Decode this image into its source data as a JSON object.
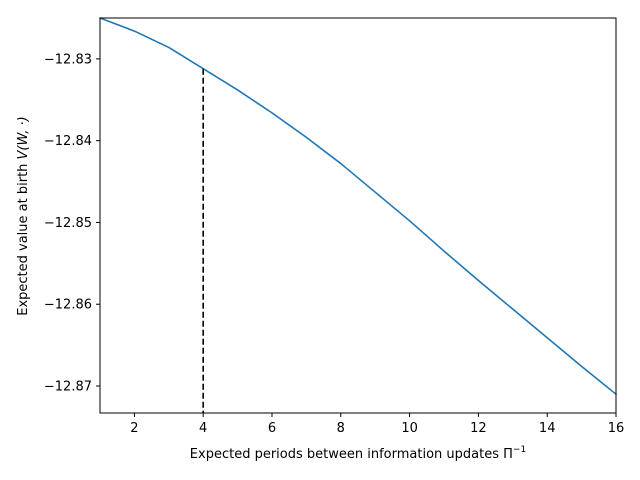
{
  "chart_data": {
    "type": "line",
    "title": "",
    "xlabel": "Expected periods between information updates",
    "xlabel_symbol": "Π",
    "xlabel_exponent": "−1",
    "ylabel": "Expected value at birth",
    "ylabel_symbol": "V(W, ·)",
    "xlim": [
      1,
      16
    ],
    "ylim": [
      -12.8733,
      -12.825
    ],
    "grid": false,
    "legend": "none",
    "x_ticks": [
      2,
      4,
      6,
      8,
      10,
      12,
      14,
      16
    ],
    "x_tick_labels": [
      "2",
      "4",
      "6",
      "8",
      "10",
      "12",
      "14",
      "16"
    ],
    "y_ticks": [
      -12.83,
      -12.84,
      -12.85,
      -12.86,
      -12.87
    ],
    "y_tick_labels": [
      "−12.83",
      "−12.84",
      "−12.85",
      "−12.86",
      "−12.87"
    ],
    "series": [
      {
        "color": "#1f77b4",
        "x": [
          1,
          2,
          3,
          4,
          5,
          6,
          7,
          8,
          9,
          10,
          11,
          12,
          13,
          14,
          15,
          16
        ],
        "y": [
          -12.825,
          -12.8266,
          -12.8286,
          -12.8312,
          -12.8338,
          -12.8366,
          -12.8396,
          -12.8428,
          -12.8463,
          -12.8498,
          -12.8535,
          -12.8571,
          -12.8606,
          -12.8641,
          -12.8676,
          -12.871
        ]
      }
    ],
    "marker_line": {
      "x": 4,
      "y_top": -12.8312,
      "style": "dashed",
      "color": "#000000"
    }
  }
}
